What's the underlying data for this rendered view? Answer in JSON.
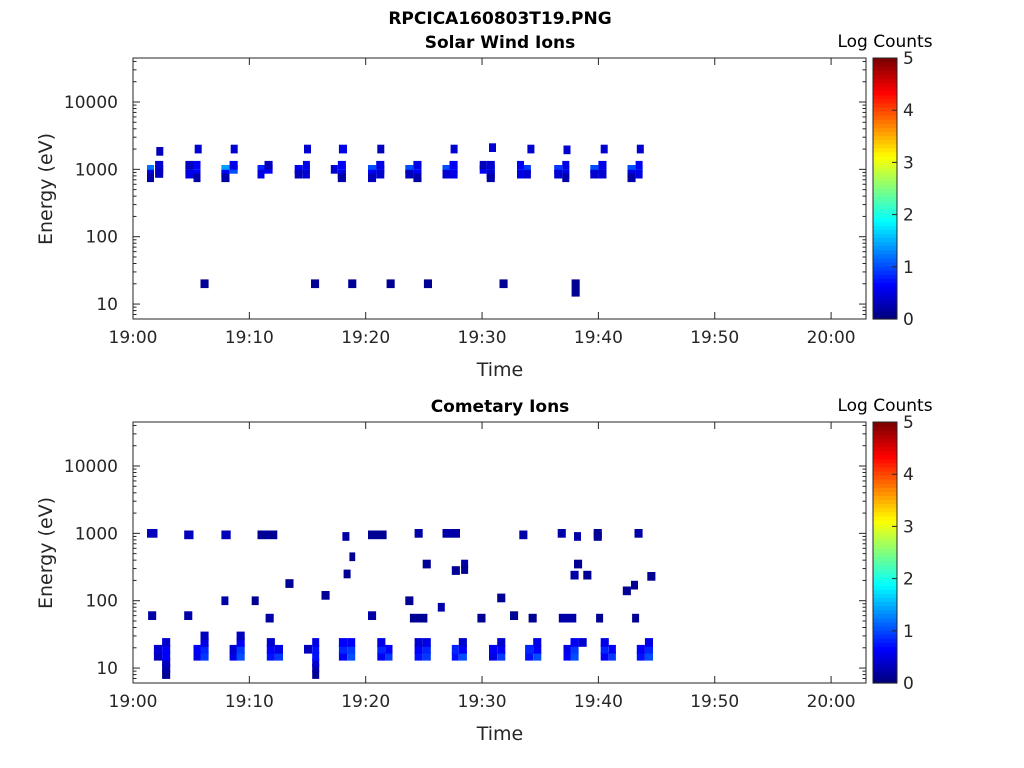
{
  "figure_title": "RPCICA160803T19.PNG",
  "chart_data": [
    {
      "type": "heatmap",
      "title": "Solar Wind Ions",
      "xlabel": "Time",
      "ylabel": "Energy (eV)",
      "x_range": [
        "19:00",
        "20:03"
      ],
      "x_ticks": [
        "19:00",
        "19:10",
        "19:20",
        "19:30",
        "19:40",
        "19:50",
        "20:00"
      ],
      "y_scale": "log",
      "ylim": [
        6,
        45000
      ],
      "y_ticks": [
        "10",
        "100",
        "1000",
        "10000"
      ],
      "colorbar": {
        "label": "Log Counts",
        "range": [
          0,
          5
        ],
        "ticks": [
          "0",
          "1",
          "2",
          "3",
          "4",
          "5"
        ],
        "colormap": "jet"
      },
      "cells": [
        [
          1.2,
          1.8,
          1000,
          1.2
        ],
        [
          1.2,
          1.8,
          850,
          0.5
        ],
        [
          1.2,
          1.8,
          750,
          0.2
        ],
        [
          1.9,
          2.6,
          1000,
          1.0
        ],
        [
          1.9,
          2.6,
          1150,
          0.4
        ],
        [
          1.9,
          2.6,
          870,
          0.3
        ],
        [
          2.0,
          2.6,
          1850,
          0.3
        ],
        [
          4.5,
          5.2,
          1000,
          1.0
        ],
        [
          4.5,
          5.2,
          1150,
          0.3
        ],
        [
          4.5,
          5.2,
          850,
          0.5
        ],
        [
          5.2,
          5.8,
          1000,
          1.6
        ],
        [
          5.2,
          5.8,
          1150,
          0.6
        ],
        [
          5.2,
          5.8,
          850,
          0.6
        ],
        [
          5.2,
          5.8,
          750,
          0.2
        ],
        [
          5.3,
          5.9,
          2000,
          0.4
        ],
        [
          7.6,
          8.3,
          1000,
          1.4
        ],
        [
          7.6,
          8.3,
          850,
          0.6
        ],
        [
          7.6,
          8.3,
          750,
          0.2
        ],
        [
          8.3,
          9.0,
          1000,
          1.0
        ],
        [
          8.3,
          9.0,
          1150,
          0.5
        ],
        [
          8.4,
          9.0,
          2000,
          0.4
        ],
        [
          10.7,
          11.3,
          1000,
          0.8
        ],
        [
          10.7,
          11.3,
          850,
          0.5
        ],
        [
          11.3,
          12.0,
          1000,
          0.6
        ],
        [
          11.3,
          12.0,
          1150,
          0.3
        ],
        [
          13.9,
          14.6,
          1000,
          0.6
        ],
        [
          13.9,
          14.6,
          850,
          0.3
        ],
        [
          14.6,
          15.2,
          1000,
          1.2
        ],
        [
          14.6,
          15.2,
          1150,
          0.5
        ],
        [
          14.6,
          15.2,
          850,
          0.4
        ],
        [
          14.7,
          15.3,
          2000,
          0.4
        ],
        [
          17.0,
          17.6,
          1000,
          0.4
        ],
        [
          17.6,
          18.3,
          1000,
          1.4
        ],
        [
          17.6,
          18.3,
          1150,
          0.6
        ],
        [
          17.6,
          18.3,
          850,
          0.5
        ],
        [
          17.6,
          18.3,
          750,
          0.2
        ],
        [
          17.7,
          18.4,
          2000,
          0.5
        ],
        [
          20.2,
          20.9,
          1000,
          1.0
        ],
        [
          20.2,
          20.9,
          850,
          0.6
        ],
        [
          20.2,
          20.9,
          750,
          0.3
        ],
        [
          20.9,
          21.6,
          1000,
          1.0
        ],
        [
          20.9,
          21.6,
          1150,
          0.5
        ],
        [
          20.9,
          21.6,
          850,
          0.4
        ],
        [
          21.0,
          21.6,
          2000,
          0.3
        ],
        [
          23.4,
          24.1,
          1000,
          1.0
        ],
        [
          23.4,
          24.1,
          850,
          0.3
        ],
        [
          24.1,
          24.8,
          1000,
          1.4
        ],
        [
          24.1,
          24.8,
          1150,
          0.5
        ],
        [
          24.1,
          24.8,
          850,
          0.6
        ],
        [
          24.1,
          24.8,
          750,
          0.2
        ],
        [
          26.6,
          27.2,
          1000,
          1.0
        ],
        [
          26.6,
          27.2,
          850,
          0.4
        ],
        [
          27.2,
          27.9,
          1000,
          1.3
        ],
        [
          27.2,
          27.9,
          1150,
          0.6
        ],
        [
          27.2,
          27.9,
          850,
          0.5
        ],
        [
          27.3,
          27.9,
          2000,
          0.4
        ],
        [
          29.8,
          30.4,
          1000,
          0.6
        ],
        [
          29.8,
          30.4,
          1150,
          0.3
        ],
        [
          30.4,
          31.1,
          1000,
          1.0
        ],
        [
          30.4,
          31.1,
          1150,
          0.4
        ],
        [
          30.4,
          31.1,
          850,
          0.4
        ],
        [
          30.4,
          31.1,
          750,
          0.2
        ],
        [
          30.6,
          31.2,
          2100,
          0.4
        ],
        [
          33.0,
          33.6,
          1000,
          1.3
        ],
        [
          33.0,
          33.6,
          1150,
          0.6
        ],
        [
          33.0,
          33.6,
          850,
          0.5
        ],
        [
          33.6,
          34.2,
          1000,
          0.9
        ],
        [
          33.6,
          34.2,
          850,
          0.4
        ],
        [
          33.9,
          34.5,
          2000,
          0.4
        ],
        [
          36.2,
          36.9,
          1000,
          0.9
        ],
        [
          36.2,
          36.9,
          850,
          0.4
        ],
        [
          36.9,
          37.5,
          1000,
          1.3
        ],
        [
          36.9,
          37.5,
          1150,
          0.5
        ],
        [
          36.9,
          37.5,
          850,
          0.5
        ],
        [
          36.9,
          37.5,
          750,
          0.2
        ],
        [
          37.0,
          37.6,
          1950,
          0.4
        ],
        [
          39.3,
          40.0,
          1000,
          1.0
        ],
        [
          39.3,
          40.0,
          850,
          0.4
        ],
        [
          40.0,
          40.7,
          1000,
          1.0
        ],
        [
          40.0,
          40.7,
          1150,
          0.5
        ],
        [
          40.0,
          40.7,
          850,
          0.4
        ],
        [
          40.2,
          40.8,
          2000,
          0.4
        ],
        [
          42.5,
          43.2,
          1000,
          1.0
        ],
        [
          42.5,
          43.2,
          850,
          0.5
        ],
        [
          42.5,
          43.2,
          750,
          0.2
        ],
        [
          43.2,
          43.8,
          1000,
          1.4
        ],
        [
          43.2,
          43.8,
          1150,
          0.6
        ],
        [
          43.2,
          43.8,
          850,
          0.5
        ],
        [
          43.3,
          43.9,
          2000,
          0.4
        ],
        [
          5.8,
          6.5,
          20,
          0.1
        ],
        [
          15.3,
          16.0,
          20,
          0.1
        ],
        [
          18.5,
          19.2,
          20,
          0.1
        ],
        [
          21.8,
          22.5,
          20,
          0.1
        ],
        [
          25.0,
          25.7,
          20,
          0.1
        ],
        [
          31.5,
          32.2,
          20,
          0.1
        ],
        [
          37.7,
          38.4,
          15,
          0.1
        ],
        [
          37.7,
          38.4,
          20,
          0.1
        ]
      ]
    },
    {
      "type": "heatmap",
      "title": "Cometary Ions",
      "xlabel": "Time",
      "ylabel": "Energy (eV)",
      "x_range": [
        "19:00",
        "20:03"
      ],
      "x_ticks": [
        "19:00",
        "19:10",
        "19:20",
        "19:30",
        "19:40",
        "19:50",
        "20:00"
      ],
      "y_scale": "log",
      "ylim": [
        6,
        45000
      ],
      "y_ticks": [
        "10",
        "100",
        "1000",
        "10000"
      ],
      "colorbar": {
        "label": "Log Counts",
        "range": [
          0,
          5
        ],
        "ticks": [
          "0",
          "1",
          "2",
          "3",
          "4",
          "5"
        ],
        "colormap": "jet"
      },
      "cells": [
        [
          1.8,
          2.5,
          15,
          0.3
        ],
        [
          1.8,
          2.5,
          19,
          0.4
        ],
        [
          2.5,
          3.2,
          8,
          0.1
        ],
        [
          2.5,
          3.2,
          10,
          0.2
        ],
        [
          2.5,
          3.2,
          12,
          0.3
        ],
        [
          2.5,
          3.2,
          15,
          0.6
        ],
        [
          2.5,
          3.2,
          19,
          0.6
        ],
        [
          2.5,
          3.2,
          24,
          0.4
        ],
        [
          5.2,
          5.8,
          15,
          0.5
        ],
        [
          5.2,
          5.8,
          19,
          0.6
        ],
        [
          5.8,
          6.5,
          15,
          0.9
        ],
        [
          5.8,
          6.5,
          19,
          0.8
        ],
        [
          5.8,
          6.5,
          24,
          0.5
        ],
        [
          5.8,
          6.5,
          30,
          0.3
        ],
        [
          8.3,
          9.0,
          15,
          0.5
        ],
        [
          8.3,
          9.0,
          19,
          0.4
        ],
        [
          8.9,
          9.6,
          15,
          1.0
        ],
        [
          8.9,
          9.6,
          19,
          0.9
        ],
        [
          8.9,
          9.6,
          24,
          0.6
        ],
        [
          8.9,
          9.6,
          30,
          0.3
        ],
        [
          11.5,
          12.2,
          15,
          0.7
        ],
        [
          11.5,
          12.2,
          19,
          0.6
        ],
        [
          11.5,
          12.2,
          24,
          0.4
        ],
        [
          12.2,
          12.9,
          15,
          0.9
        ],
        [
          12.2,
          12.9,
          19,
          0.5
        ],
        [
          14.7,
          15.4,
          19,
          0.3
        ],
        [
          15.4,
          16.0,
          8,
          0.1
        ],
        [
          15.4,
          16.0,
          10,
          0.2
        ],
        [
          15.4,
          16.0,
          12,
          0.4
        ],
        [
          15.4,
          16.0,
          15,
          0.7
        ],
        [
          15.4,
          16.0,
          19,
          0.7
        ],
        [
          15.4,
          16.0,
          24,
          0.5
        ],
        [
          17.7,
          18.4,
          15,
          0.6
        ],
        [
          17.7,
          18.4,
          19,
          0.8
        ],
        [
          17.7,
          18.4,
          24,
          0.6
        ],
        [
          18.4,
          19.1,
          15,
          1.0
        ],
        [
          18.4,
          19.1,
          19,
          0.9
        ],
        [
          18.4,
          19.1,
          24,
          0.6
        ],
        [
          21.0,
          21.7,
          15,
          0.6
        ],
        [
          21.0,
          21.7,
          19,
          0.8
        ],
        [
          21.0,
          21.7,
          24,
          0.5
        ],
        [
          21.7,
          22.3,
          15,
          0.9
        ],
        [
          21.7,
          22.3,
          19,
          0.6
        ],
        [
          24.2,
          24.9,
          15,
          0.7
        ],
        [
          24.2,
          24.9,
          19,
          0.6
        ],
        [
          24.2,
          24.9,
          24,
          0.4
        ],
        [
          24.9,
          25.6,
          15,
          0.9
        ],
        [
          24.9,
          25.6,
          19,
          0.8
        ],
        [
          24.9,
          25.6,
          24,
          0.5
        ],
        [
          27.4,
          28.0,
          15,
          0.7
        ],
        [
          27.4,
          28.0,
          19,
          0.8
        ],
        [
          28.0,
          28.7,
          15,
          1.0
        ],
        [
          28.0,
          28.7,
          19,
          0.6
        ],
        [
          28.0,
          28.7,
          24,
          0.4
        ],
        [
          30.6,
          31.3,
          15,
          0.5
        ],
        [
          30.6,
          31.3,
          19,
          0.6
        ],
        [
          31.3,
          32.0,
          15,
          0.9
        ],
        [
          31.3,
          32.0,
          19,
          0.6
        ],
        [
          31.3,
          32.0,
          24,
          0.4
        ],
        [
          33.7,
          34.4,
          15,
          0.7
        ],
        [
          33.7,
          34.4,
          19,
          0.8
        ],
        [
          34.4,
          35.1,
          15,
          1.0
        ],
        [
          34.4,
          35.1,
          19,
          0.6
        ],
        [
          34.4,
          35.1,
          24,
          0.5
        ],
        [
          37.0,
          37.6,
          15,
          0.6
        ],
        [
          37.0,
          37.6,
          19,
          0.5
        ],
        [
          37.6,
          38.3,
          15,
          1.0
        ],
        [
          37.6,
          38.3,
          19,
          0.9
        ],
        [
          37.6,
          38.3,
          24,
          0.6
        ],
        [
          38.3,
          39.0,
          24,
          0.4
        ],
        [
          40.2,
          40.9,
          15,
          0.6
        ],
        [
          40.2,
          40.9,
          19,
          0.8
        ],
        [
          40.2,
          40.9,
          24,
          0.5
        ],
        [
          40.9,
          41.5,
          15,
          0.9
        ],
        [
          40.9,
          41.5,
          19,
          0.6
        ],
        [
          43.3,
          44.0,
          15,
          0.7
        ],
        [
          43.3,
          44.0,
          19,
          0.6
        ],
        [
          44.0,
          44.7,
          15,
          1.0
        ],
        [
          44.0,
          44.7,
          19,
          0.8
        ],
        [
          44.0,
          44.7,
          24,
          0.5
        ],
        [
          1.2,
          2.1,
          1000,
          0.3
        ],
        [
          4.4,
          5.2,
          950,
          0.3
        ],
        [
          7.6,
          8.4,
          950,
          0.3
        ],
        [
          10.7,
          12.4,
          950,
          0.1
        ],
        [
          18.0,
          18.6,
          900,
          0.2
        ],
        [
          20.2,
          21.8,
          950,
          0.1
        ],
        [
          24.2,
          24.9,
          1000,
          0.2
        ],
        [
          26.6,
          28.1,
          1000,
          0.2
        ],
        [
          33.2,
          33.9,
          950,
          0.2
        ],
        [
          36.5,
          37.2,
          1000,
          0.2
        ],
        [
          37.9,
          38.5,
          900,
          0.2
        ],
        [
          39.6,
          40.3,
          1000,
          0.1
        ],
        [
          39.6,
          40.3,
          900,
          0.1
        ],
        [
          43.1,
          43.8,
          1000,
          0.2
        ],
        [
          1.3,
          2.0,
          60,
          0.2
        ],
        [
          4.4,
          5.1,
          60,
          0.2
        ],
        [
          7.6,
          8.2,
          100,
          0.2
        ],
        [
          10.2,
          10.8,
          100,
          0.1
        ],
        [
          11.4,
          12.1,
          55,
          0.2
        ],
        [
          13.1,
          13.8,
          180,
          0.1
        ],
        [
          16.2,
          16.9,
          120,
          0.1
        ],
        [
          18.1,
          18.7,
          250,
          0.1
        ],
        [
          18.6,
          19.1,
          450,
          0.1
        ],
        [
          20.2,
          20.9,
          60,
          0.2
        ],
        [
          23.4,
          24.1,
          100,
          0.1
        ],
        [
          23.8,
          25.3,
          55,
          0.1
        ],
        [
          26.2,
          26.8,
          80,
          0.2
        ],
        [
          28.2,
          28.8,
          350,
          0.2
        ],
        [
          28.2,
          28.8,
          290,
          0.1
        ],
        [
          29.6,
          30.3,
          55,
          0.1
        ],
        [
          31.3,
          32.0,
          110,
          0.1
        ],
        [
          32.4,
          33.1,
          60,
          0.1
        ],
        [
          34.0,
          34.7,
          55,
          0.1
        ],
        [
          37.6,
          38.3,
          240,
          0.2
        ],
        [
          37.9,
          38.6,
          350,
          0.1
        ],
        [
          38.7,
          39.4,
          240,
          0.1
        ],
        [
          36.6,
          38.1,
          55,
          0.2
        ],
        [
          39.8,
          40.4,
          55,
          0.1
        ],
        [
          42.1,
          42.8,
          140,
          0.1
        ],
        [
          42.8,
          43.4,
          170,
          0.1
        ],
        [
          44.2,
          44.9,
          230,
          0.1
        ],
        [
          42.9,
          43.5,
          55,
          0.1
        ],
        [
          24.9,
          25.6,
          350,
          0.1
        ],
        [
          27.4,
          28.1,
          280,
          0.1
        ]
      ]
    }
  ],
  "colors": {
    "axis": "#262626",
    "background": "#ffffff"
  }
}
